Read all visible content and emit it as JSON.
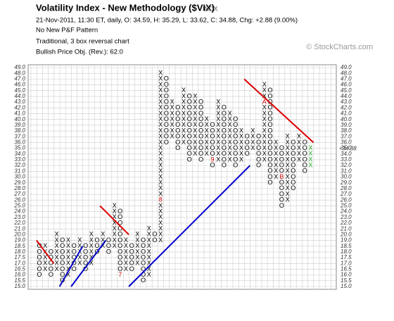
{
  "chart_data": {
    "type": "pnf",
    "title": "Volatility Index - New Methodology ($VIX)",
    "symbol_group": "INDX",
    "info": "21-Nov-2011, 11:30 ET, daily, O: 34.59, H: 35.29, L: 33.62, C: 34.88, Chg: +2.88 (9.00%)",
    "pattern": "No New P&F Pattern",
    "method": "Traditional, 3 box reversal chart",
    "objective": "Bullish Price Obj. (Rev.): 62.0",
    "watermark": "© StockCharts.com",
    "x_color": "#000000",
    "o_color": "#000000",
    "month_color": "#cc0000",
    "current_box": 34,
    "last_price": {
      "value": 34.88,
      "label": "<34.88"
    },
    "yticks": [
      {
        "value": 15,
        "label": "15.0"
      },
      {
        "value": 15.5,
        "label": "15.5"
      },
      {
        "value": 16,
        "label": "16.0"
      },
      {
        "value": 16.5,
        "label": "16.5"
      },
      {
        "value": 17,
        "label": "17.0"
      },
      {
        "value": 17.5,
        "label": "17.5"
      },
      {
        "value": 18,
        "label": "18.0"
      },
      {
        "value": 18.5,
        "label": "18.5"
      },
      {
        "value": 19,
        "label": "19.0"
      },
      {
        "value": 20,
        "label": "20.0"
      },
      {
        "value": 21,
        "label": "21.0"
      },
      {
        "value": 22,
        "label": "22.0"
      },
      {
        "value": 23,
        "label": "23.0"
      },
      {
        "value": 24,
        "label": "24.0"
      },
      {
        "value": 25,
        "label": "25.0"
      },
      {
        "value": 26,
        "label": "26.0"
      },
      {
        "value": 27,
        "label": "27.0"
      },
      {
        "value": 28,
        "label": "28.0"
      },
      {
        "value": 29,
        "label": "29.0"
      },
      {
        "value": 30,
        "label": "30.0"
      },
      {
        "value": 31,
        "label": "31.0"
      },
      {
        "value": 32,
        "label": "32.0"
      },
      {
        "value": 33,
        "label": "33.0"
      },
      {
        "value": 34,
        "label": "34.0"
      },
      {
        "value": 35,
        "label": "35.0"
      },
      {
        "value": 36,
        "label": "36.0"
      },
      {
        "value": 37,
        "label": "37.0"
      },
      {
        "value": 38,
        "label": "38.0"
      },
      {
        "value": 39,
        "label": "39.0"
      },
      {
        "value": 40,
        "label": "40.0"
      },
      {
        "value": 41,
        "label": "41.0"
      },
      {
        "value": 42,
        "label": "42.0"
      },
      {
        "value": 43,
        "label": "43.0"
      },
      {
        "value": 44,
        "label": "44.0"
      },
      {
        "value": 45,
        "label": "45.0"
      },
      {
        "value": 46,
        "label": "46.0"
      },
      {
        "value": 47,
        "label": "47.0"
      },
      {
        "value": 48,
        "label": "48.0"
      },
      {
        "value": 49,
        "label": "49.0"
      }
    ],
    "columns": [
      {
        "type": "O",
        "low": 16,
        "high": 18.5
      },
      {
        "type": "X",
        "low": 16.5,
        "high": 18.5
      },
      {
        "type": "O",
        "low": 16,
        "high": 18
      },
      {
        "type": "X",
        "low": 16.5,
        "high": 20
      },
      {
        "type": "O",
        "low": 15.5,
        "high": 19
      },
      {
        "type": "X",
        "low": 16,
        "high": 19
      },
      {
        "type": "O",
        "low": 16.5,
        "high": 18.5
      },
      {
        "type": "X",
        "low": 17,
        "high": 19
      },
      {
        "type": "O",
        "low": 16.5,
        "high": 18.5
      },
      {
        "type": "X",
        "low": 17,
        "high": 20
      },
      {
        "type": "O",
        "low": 18,
        "high": 19
      },
      {
        "type": "X",
        "low": 18.5,
        "high": 20
      },
      {
        "type": "O",
        "low": 18,
        "high": 19
      },
      {
        "type": "X",
        "low": 18.5,
        "high": 25
      },
      {
        "type": "O",
        "low": 16,
        "high": 24,
        "month": {
          "value": 16,
          "label": "7"
        }
      },
      {
        "type": "X",
        "low": 16.5,
        "high": 19
      },
      {
        "type": "O",
        "low": 16.5,
        "high": 18.5
      },
      {
        "type": "X",
        "low": 17,
        "high": 20
      },
      {
        "type": "O",
        "low": 15.5,
        "high": 19
      },
      {
        "type": "X",
        "low": 16,
        "high": 21
      },
      {
        "type": "O",
        "low": 19,
        "high": 20
      },
      {
        "type": "X",
        "low": 19,
        "high": 48,
        "month": {
          "value": 26,
          "label": "8"
        }
      },
      {
        "type": "O",
        "low": 36,
        "high": 47
      },
      {
        "type": "X",
        "low": 37,
        "high": 43
      },
      {
        "type": "O",
        "low": 35,
        "high": 42
      },
      {
        "type": "X",
        "low": 36,
        "high": 45
      },
      {
        "type": "O",
        "low": 33,
        "high": 44
      },
      {
        "type": "X",
        "low": 34,
        "high": 44
      },
      {
        "type": "O",
        "low": 33,
        "high": 43
      },
      {
        "type": "X",
        "low": 34,
        "high": 40
      },
      {
        "type": "O",
        "low": 32,
        "high": 39,
        "month": {
          "value": 33,
          "label": "9"
        }
      },
      {
        "type": "X",
        "low": 33,
        "high": 43
      },
      {
        "type": "O",
        "low": 32,
        "high": 42
      },
      {
        "type": "X",
        "low": 33,
        "high": 41
      },
      {
        "type": "O",
        "low": 32,
        "high": 40
      },
      {
        "type": "X",
        "low": 33,
        "high": 38
      },
      {
        "type": "O",
        "low": 34,
        "high": 37
      },
      {
        "type": "X",
        "low": 35,
        "high": 38
      },
      {
        "type": "O",
        "low": 32,
        "high": 37
      },
      {
        "type": "X",
        "low": 33,
        "high": 46,
        "month": {
          "value": 43,
          "label": "A"
        }
      },
      {
        "type": "O",
        "low": 29,
        "high": 45
      },
      {
        "type": "X",
        "low": 30,
        "high": 36
      },
      {
        "type": "O",
        "low": 25,
        "high": 35,
        "month": {
          "value": 30,
          "label": "B"
        }
      },
      {
        "type": "X",
        "low": 26,
        "high": 37
      },
      {
        "type": "O",
        "low": 28,
        "high": 36
      },
      {
        "type": "X",
        "low": 33,
        "high": 37
      },
      {
        "type": "O",
        "low": 31,
        "high": 36
      },
      {
        "type": "X",
        "low": 32,
        "high": 35,
        "color": "#22aa22"
      }
    ],
    "trendlines": [
      {
        "color": "#dd0000",
        "start": {
          "column": 0,
          "value": 19
        },
        "end": {
          "column": 3,
          "value": 17
        }
      },
      {
        "color": "#dd0000",
        "start": {
          "column": 11,
          "value": 25
        },
        "end": {
          "column": 16,
          "value": 20
        }
      },
      {
        "color": "#dd0000",
        "start": {
          "column": 36,
          "value": 47
        },
        "end": {
          "column": 48,
          "value": 36
        }
      },
      {
        "color": "#0000cc",
        "start": {
          "column": 4,
          "value": 15
        },
        "end": {
          "column": 8,
          "value": 18.5
        }
      },
      {
        "color": "#0000cc",
        "start": {
          "column": 6,
          "value": 15
        },
        "end": {
          "column": 12,
          "value": 19
        }
      },
      {
        "color": "#0000cc",
        "start": {
          "column": 16,
          "value": 15
        },
        "end": {
          "column": 37,
          "value": 32
        }
      }
    ]
  }
}
